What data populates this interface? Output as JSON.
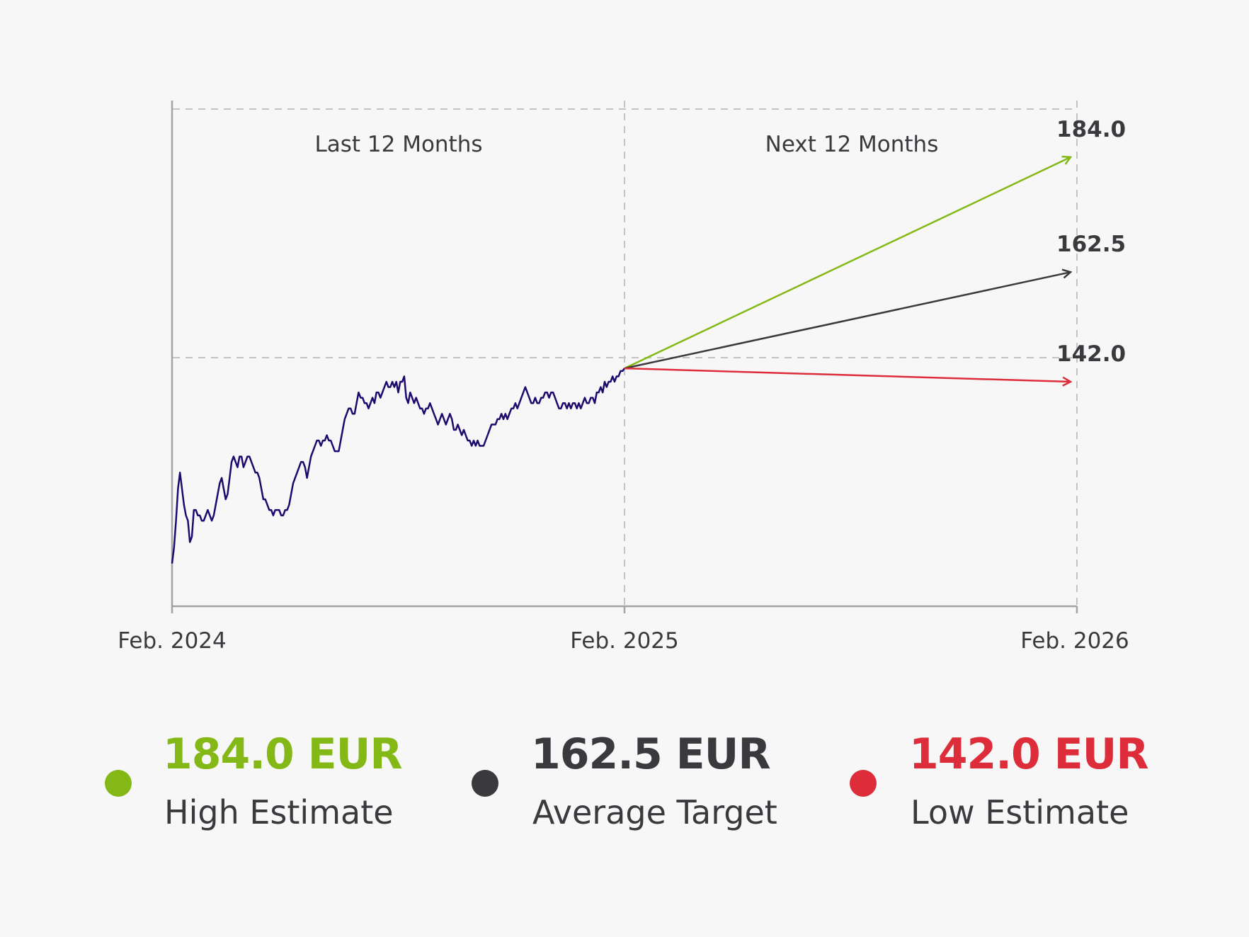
{
  "chart_data": {
    "type": "line",
    "sections": [
      "Last 12 Months",
      "Next 12 Months"
    ],
    "x_ticks": [
      "Feb. 2024",
      "Feb. 2025",
      "Feb. 2026"
    ],
    "ylim": [
      100,
      190
    ],
    "reference_price": 144.5,
    "grid": "dashed",
    "history": {
      "x_start": "Feb. 2024",
      "x_end": "Feb. 2025",
      "values": [
        108,
        111,
        116,
        122,
        125,
        122,
        119,
        117,
        116,
        112,
        113,
        118,
        118,
        117,
        117,
        116,
        116,
        117,
        118,
        117,
        116,
        117,
        119,
        121,
        123,
        124,
        122,
        120,
        121,
        124,
        127,
        128,
        127,
        126,
        128,
        128,
        126,
        127,
        128,
        128,
        127,
        126,
        125,
        125,
        124,
        122,
        120,
        120,
        119,
        118,
        118,
        117,
        118,
        118,
        118,
        117,
        117,
        118,
        118,
        119,
        121,
        123,
        124,
        125,
        126,
        127,
        127,
        126,
        124,
        126,
        128,
        129,
        130,
        131,
        131,
        130,
        131,
        131,
        132,
        131,
        131,
        130,
        129,
        129,
        129,
        131,
        133,
        135,
        136,
        137,
        137,
        136,
        136,
        138,
        140,
        139,
        139,
        138,
        138,
        137,
        138,
        139,
        138,
        140,
        140,
        139,
        140,
        141,
        142,
        141,
        141,
        142,
        141,
        142,
        140,
        142,
        142,
        143,
        139,
        138,
        140,
        139,
        138,
        139,
        138,
        137,
        137,
        136,
        137,
        137,
        138,
        137,
        136,
        135,
        134,
        135,
        136,
        135,
        134,
        135,
        136,
        135,
        133,
        133,
        134,
        133,
        132,
        133,
        132,
        131,
        131,
        130,
        131,
        130,
        131,
        130,
        130,
        130,
        131,
        132,
        133,
        134,
        134,
        134,
        135,
        135,
        136,
        135,
        136,
        135,
        136,
        137,
        137,
        138,
        137,
        138,
        139,
        140,
        141,
        140,
        139,
        138,
        138,
        139,
        138,
        138,
        139,
        139,
        140,
        140,
        139,
        140,
        140,
        139,
        138,
        137,
        137,
        138,
        138,
        137,
        138,
        137,
        138,
        138,
        137,
        138,
        137,
        138,
        139,
        138,
        138,
        139,
        139,
        138,
        140,
        140,
        141,
        140,
        142,
        141,
        142,
        142,
        143,
        142,
        143,
        143,
        144,
        144,
        144.5
      ]
    },
    "targets": [
      {
        "name": "High Estimate",
        "label": "184.0",
        "legend_value": "184.0 EUR",
        "value": 184.0,
        "color": "#84b816"
      },
      {
        "name": "Average Target",
        "label": "162.5",
        "legend_value": "162.5 EUR",
        "value": 162.5,
        "color": "#3a3a3e"
      },
      {
        "name": "Low Estimate",
        "label": "142.0",
        "legend_value": "142.0 EUR",
        "value": 142.0,
        "color": "#dd2c3a"
      }
    ],
    "colors": {
      "history": "#1e0a6e",
      "axis": "#a4a4a4",
      "grid": "#c4c4c4"
    }
  }
}
